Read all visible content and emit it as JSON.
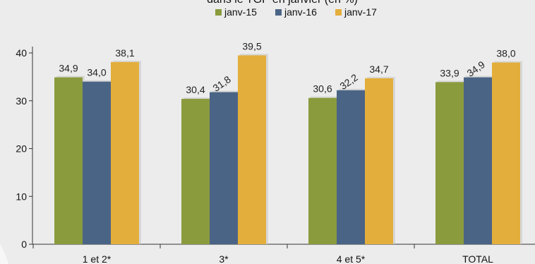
{
  "chart_data": {
    "type": "bar",
    "title": "dans le TGP en janvier (en %)",
    "categories": [
      "1 et 2*",
      "3*",
      "4 et 5*",
      "TOTAL"
    ],
    "series": [
      {
        "name": "janv-15",
        "color": "#8a9b3e",
        "values": [
          34.9,
          30.4,
          30.6,
          33.9
        ],
        "labels": [
          "34,9",
          "30,4",
          "30,6",
          "33,9"
        ]
      },
      {
        "name": "janv-16",
        "color": "#4a6486",
        "values": [
          34.0,
          31.8,
          32.2,
          34.9
        ],
        "labels": [
          "34,0",
          "31,8",
          "32,2",
          "34,9"
        ]
      },
      {
        "name": "janv-17",
        "color": "#e3ae3b",
        "values": [
          38.1,
          39.5,
          34.7,
          38.0
        ],
        "labels": [
          "38,1",
          "39,5",
          "34,7",
          "38,0"
        ]
      }
    ],
    "yticks": [
      0,
      10,
      20,
      30,
      40
    ],
    "ylim": [
      0,
      40
    ],
    "grid": false,
    "legend": "top-center"
  }
}
